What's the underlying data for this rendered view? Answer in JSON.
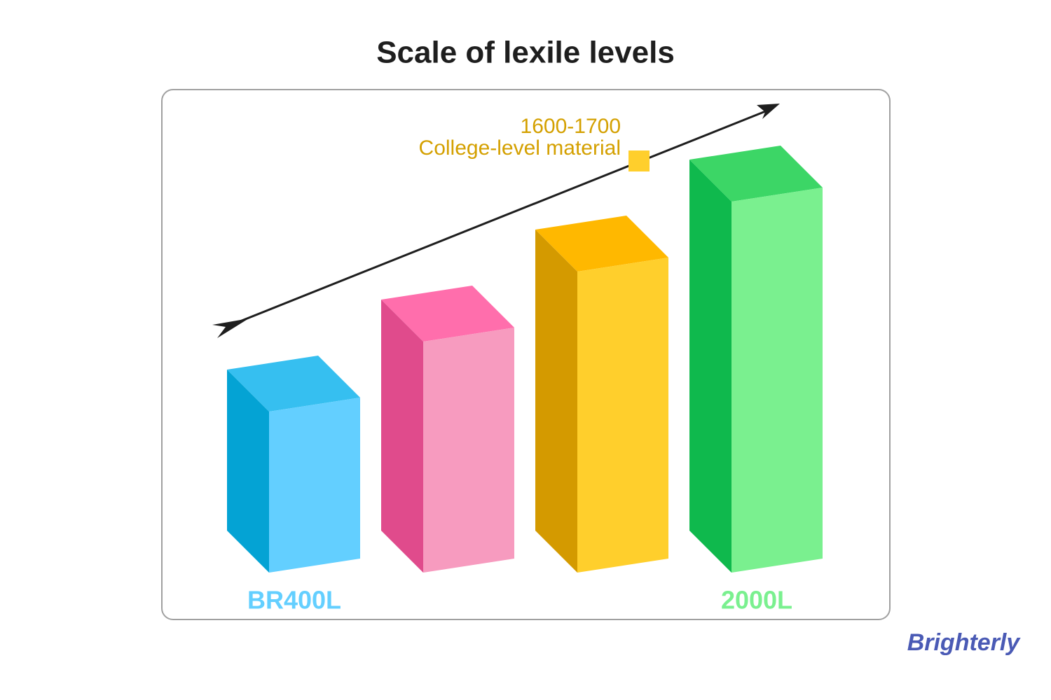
{
  "title": "Scale of lexile levels",
  "annotation": {
    "range": "1600-1700",
    "text": "College-level material"
  },
  "labels": [
    "BR400L",
    "2000L"
  ],
  "logo": "Brighterly"
}
